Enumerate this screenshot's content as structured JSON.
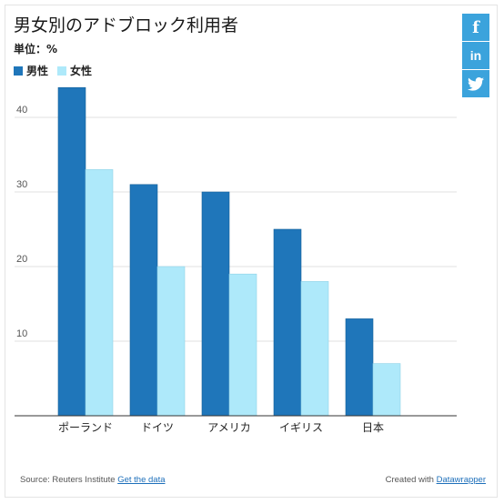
{
  "title": "男女別のアドブロック利用者",
  "subtitle": "単位：%",
  "colors": {
    "male": "#1f76ba",
    "female": "#aee9fa",
    "social": "#3ba3dc"
  },
  "social": [
    {
      "name": "facebook-icon",
      "glyph": "f"
    },
    {
      "name": "linkedin-icon",
      "glyph": "in"
    },
    {
      "name": "twitter-icon",
      "glyph": "🐦"
    }
  ],
  "chart_data": {
    "type": "bar",
    "categories": [
      "ポーランド",
      "ドイツ",
      "アメリカ",
      "イギリス",
      "日本"
    ],
    "series": [
      {
        "name": "男性",
        "values": [
          44,
          31,
          30,
          25,
          13
        ]
      },
      {
        "name": "女性",
        "values": [
          33,
          20,
          19,
          18,
          7
        ]
      }
    ],
    "ylim": [
      0,
      40
    ],
    "yticks": [
      10,
      20,
      30,
      40
    ],
    "grid": true,
    "legend": "top-left"
  },
  "footer": {
    "source_prefix": "Source: Reuters Institute",
    "source_link": "Get the data",
    "created_prefix": "Created with",
    "created_link": "Datawrapper"
  }
}
